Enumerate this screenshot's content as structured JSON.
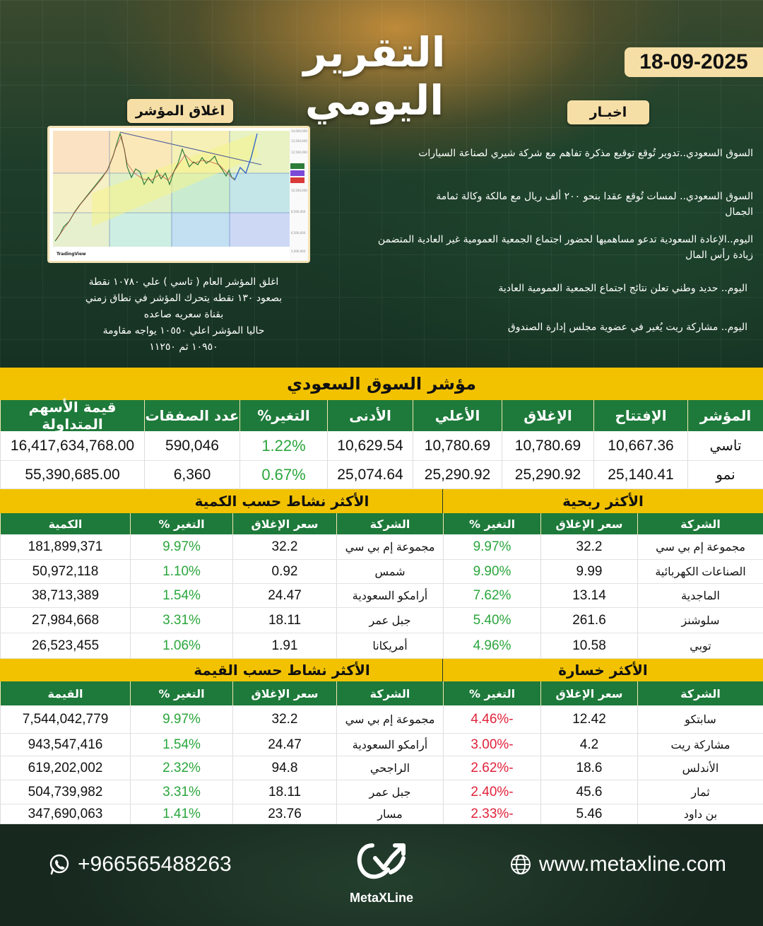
{
  "header": {
    "title": "التقرير اليومي",
    "date": "18-09-2025"
  },
  "index_close": {
    "label": "اغلاق المؤشر",
    "chart_brand": "TradingView",
    "summary": [
      "اغلق المؤشر العام ( تاسي ) علي ١٠٧٨٠ نقطة",
      "بصعود ١٣٠ نقطه يتحرك المؤشر في نطاق زمني",
      "بقناة سعريه صاعده",
      "حاليا المؤشر اعلي ١٠٥٥٠ يواجه مقاومة",
      "١٠٩٥٠ ثم ١١٢٥٠"
    ]
  },
  "news": {
    "label": "اخبـار",
    "items": [
      "السوق السعودي..تدوير تُوقع توقيع مذكرة تفاهم مع شركة شيري لصناعة السيارات",
      "السوق السعودي.. لمسات تُوقع عقدا بنحو ٢٠٠ ألف ريال مع مالكة وكالة ثمامة الجمال",
      "اليوم..الإعادة السعودية تدعو مساهميها لحضور اجتماع الجمعية العمومية غير العادية المتضمن زيادة رأس المال",
      "اليوم.. حديد وطني تعلن نتائج اجتماع الجمعية العمومية العادية",
      "اليوم.. مشاركة ريت يُغير في عضوية مجلس إدارة الصندوق"
    ]
  },
  "market": {
    "title": "مؤشر السوق السعودي",
    "headers": [
      "المؤشر",
      "الإفتتاح",
      "الإغلاق",
      "الأعلي",
      "الأدنى",
      "التغير%",
      "عدد الصفقات",
      "قيمة الأسهم المتداولة"
    ],
    "rows": [
      [
        "تاسي",
        "10,667.36",
        "10,780.69",
        "10,780.69",
        "10,629.54",
        "1.22%",
        "590,046",
        "16,417,634,768.00"
      ],
      [
        "نمو",
        "25,140.41",
        "25,290.92",
        "25,290.92",
        "25,074.64",
        "0.67%",
        "6,360",
        "55,390,685.00"
      ]
    ]
  },
  "gainers": {
    "title": "الأكثر ربحية",
    "headers": [
      "الشركة",
      "سعر الإغلاق",
      "التغير %"
    ],
    "rows": [
      [
        "مجموعة إم بي سي",
        "32.2",
        "9.97%"
      ],
      [
        "الصناعات الكهربائية",
        "9.99",
        "9.90%"
      ],
      [
        "الماجدية",
        "13.14",
        "7.62%"
      ],
      [
        "سلوشنز",
        "261.6",
        "5.40%"
      ],
      [
        "توبي",
        "10.58",
        "4.96%"
      ]
    ]
  },
  "volume": {
    "title": "الأكثر نشاط حسب الكمية",
    "headers": [
      "الشركة",
      "سعر الإغلاق",
      "التغير %",
      "الكمية"
    ],
    "rows": [
      [
        "مجموعة إم بي سي",
        "32.2",
        "9.97%",
        "181,899,371"
      ],
      [
        "شمس",
        "0.92",
        "1.10%",
        "50,972,118"
      ],
      [
        "أرامكو السعودية",
        "24.47",
        "1.54%",
        "38,713,389"
      ],
      [
        "جبل عمر",
        "18.11",
        "3.31%",
        "27,984,668"
      ],
      [
        "أمريكانا",
        "1.91",
        "1.06%",
        "26,523,455"
      ]
    ]
  },
  "losers": {
    "title": "الأكثر خسارة",
    "headers": [
      "الشركة",
      "سعر الإغلاق",
      "التغير %"
    ],
    "rows": [
      [
        "سابتكو",
        "12.42",
        "-4.46%"
      ],
      [
        "مشاركة ريت",
        "4.2",
        "-3.00%"
      ],
      [
        "الأندلس",
        "18.6",
        "-2.62%"
      ],
      [
        "ثمار",
        "45.6",
        "-2.40%"
      ],
      [
        "بن داود",
        "5.46",
        "-2.33%"
      ]
    ]
  },
  "value": {
    "title": "الأكثر نشاط حسب القيمة",
    "headers": [
      "الشركة",
      "سعر الإغلاق",
      "التغير %",
      "القيمة"
    ],
    "rows": [
      [
        "مجموعة إم بي سي",
        "32.2",
        "9.97%",
        "7,544,042,779"
      ],
      [
        "أرامكو السعودية",
        "24.47",
        "1.54%",
        "943,547,416"
      ],
      [
        "الراجحي",
        "94.8",
        "2.32%",
        "619,202,002"
      ],
      [
        "جبل عمر",
        "18.11",
        "3.31%",
        "504,739,982"
      ],
      [
        "مسار",
        "23.76",
        "1.41%",
        "347,690,063"
      ]
    ]
  },
  "footer": {
    "phone": "+966565488263",
    "website": "www.metaxline.com",
    "brand": "MetaXLine",
    "icons": [
      "whatsapp-icon",
      "globe-icon"
    ]
  }
}
